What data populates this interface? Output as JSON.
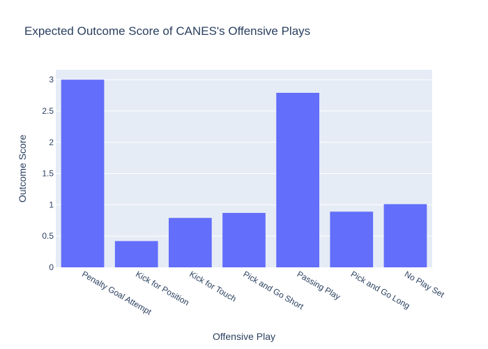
{
  "chart_data": {
    "type": "bar",
    "title": "Expected Outcome Score of CANES's Offensive Plays",
    "xlabel": "Offensive Play",
    "ylabel": "Outcome Score",
    "categories": [
      "Penalty Goal Attempt",
      "Kick for Position",
      "Kick for Touch",
      "Pick and Go Short",
      "Passing Play",
      "Pick and Go Long",
      "No Play Set"
    ],
    "values": [
      3.0,
      0.42,
      0.79,
      0.87,
      2.79,
      0.89,
      1.01
    ],
    "ylim": [
      0,
      3.158
    ],
    "yticks": [
      0,
      0.5,
      1,
      1.5,
      2,
      2.5,
      3
    ],
    "ytick_labels": [
      "0",
      "0.5",
      "1",
      "1.5",
      "2",
      "2.5",
      "3"
    ],
    "grid": true,
    "bar_color": "#636efa",
    "plot_bg_color": "#e5ecf6"
  }
}
